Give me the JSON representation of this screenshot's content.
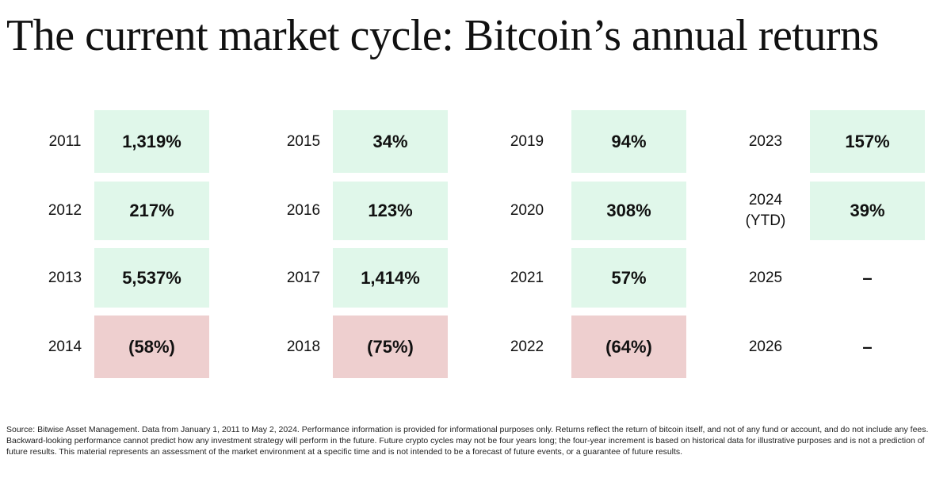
{
  "title": "The current market cycle: Bitcoin’s annual returns",
  "colors": {
    "positive_bg": "#e0f7ea",
    "negative_bg": "#eecfcf",
    "text": "#111111"
  },
  "chart_data": {
    "type": "table",
    "title": "The current market cycle: Bitcoin’s annual returns",
    "unit": "percent annual return",
    "columns": [
      {
        "rows": [
          {
            "year": "2011",
            "year_note": "",
            "label": "1,319%",
            "value": 1319,
            "status": "positive"
          },
          {
            "year": "2012",
            "year_note": "",
            "label": "217%",
            "value": 217,
            "status": "positive"
          },
          {
            "year": "2013",
            "year_note": "",
            "label": "5,537%",
            "value": 5537,
            "status": "positive"
          },
          {
            "year": "2014",
            "year_note": "",
            "label": "(58%)",
            "value": -58,
            "status": "negative"
          }
        ]
      },
      {
        "rows": [
          {
            "year": "2015",
            "year_note": "",
            "label": "34%",
            "value": 34,
            "status": "positive"
          },
          {
            "year": "2016",
            "year_note": "",
            "label": "123%",
            "value": 123,
            "status": "positive"
          },
          {
            "year": "2017",
            "year_note": "",
            "label": "1,414%",
            "value": 1414,
            "status": "positive"
          },
          {
            "year": "2018",
            "year_note": "",
            "label": "(75%)",
            "value": -75,
            "status": "negative"
          }
        ]
      },
      {
        "rows": [
          {
            "year": "2019",
            "year_note": "",
            "label": "94%",
            "value": 94,
            "status": "positive"
          },
          {
            "year": "2020",
            "year_note": "",
            "label": "308%",
            "value": 308,
            "status": "positive"
          },
          {
            "year": "2021",
            "year_note": "",
            "label": "57%",
            "value": 57,
            "status": "positive"
          },
          {
            "year": "2022",
            "year_note": "",
            "label": "(64%)",
            "value": -64,
            "status": "negative"
          }
        ]
      },
      {
        "rows": [
          {
            "year": "2023",
            "year_note": "",
            "label": "157%",
            "value": 157,
            "status": "positive"
          },
          {
            "year": "2024",
            "year_note": "(YTD)",
            "label": "39%",
            "value": 39,
            "status": "positive"
          },
          {
            "year": "2025",
            "year_note": "",
            "label": "–",
            "value": null,
            "status": "none"
          },
          {
            "year": "2026",
            "year_note": "",
            "label": "–",
            "value": null,
            "status": "none"
          }
        ]
      }
    ]
  },
  "footnote": "Source: Bitwise Asset Management. Data from January 1, 2011 to May 2, 2024. Performance information is provided for informational purposes only. Returns reflect the return of bitcoin itself, and not of any fund or account, and do not include any fees. Backward-looking performance cannot predict how any investment strategy will perform in the future. Future crypto cycles may not be four years long; the four-year increment is based on historical data for illustrative purposes and is not a prediction of future results. This material represents an assessment of the market environment at a specific time and is not intended to be a forecast of future events, or a guarantee of future results."
}
